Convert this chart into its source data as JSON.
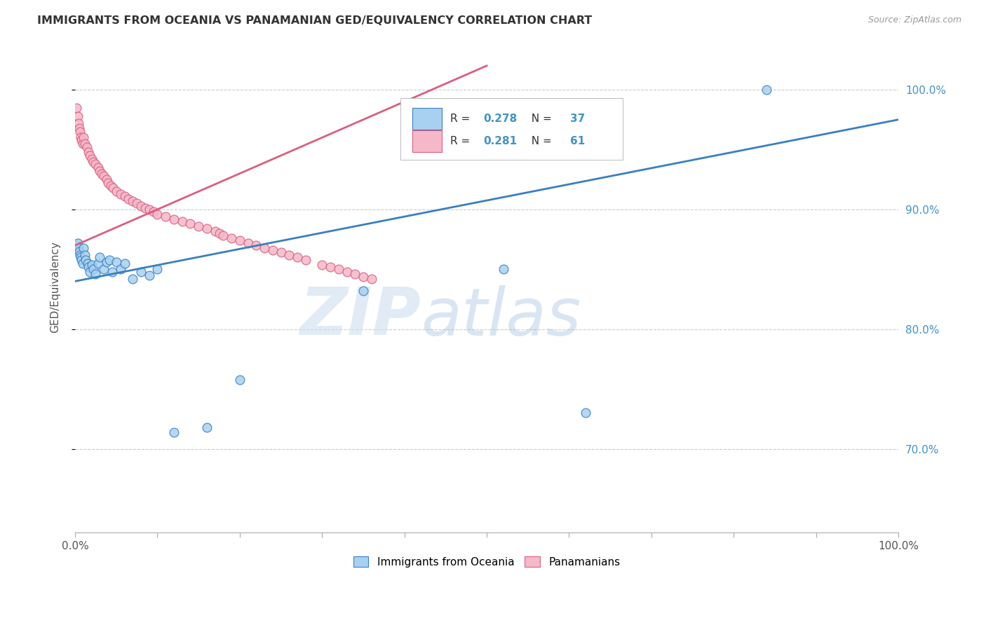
{
  "title": "IMMIGRANTS FROM OCEANIA VS PANAMANIAN GED/EQUIVALENCY CORRELATION CHART",
  "source": "Source: ZipAtlas.com",
  "ylabel": "GED/Equivalency",
  "legend_blue_label": "Immigrants from Oceania",
  "legend_pink_label": "Panamanians",
  "legend_blue_R": "0.278",
  "legend_blue_N": "37",
  "legend_pink_R": "0.281",
  "legend_pink_N": "61",
  "blue_color": "#a8d0f0",
  "pink_color": "#f5b8c8",
  "trend_blue_color": "#3a7fc1",
  "trend_pink_color": "#d95f7f",
  "yaxis_color": "#4393c3",
  "xlim": [
    0.0,
    1.0
  ],
  "ylim": [
    0.63,
    1.04
  ],
  "yticks": [
    0.7,
    0.8,
    0.9,
    1.0
  ],
  "ytick_labels": [
    "70.0%",
    "80.0%",
    "90.0%",
    "100.0%"
  ],
  "blue_points_x": [
    0.002,
    0.003,
    0.004,
    0.005,
    0.006,
    0.007,
    0.008,
    0.009,
    0.01,
    0.012,
    0.013,
    0.015,
    0.016,
    0.018,
    0.02,
    0.022,
    0.025,
    0.028,
    0.03,
    0.035,
    0.038,
    0.042,
    0.045,
    0.05,
    0.055,
    0.06,
    0.07,
    0.08,
    0.09,
    0.1,
    0.12,
    0.16,
    0.2,
    0.35,
    0.52,
    0.62,
    0.84
  ],
  "blue_points_y": [
    0.87,
    0.872,
    0.868,
    0.865,
    0.862,
    0.86,
    0.858,
    0.855,
    0.868,
    0.862,
    0.858,
    0.855,
    0.852,
    0.848,
    0.854,
    0.85,
    0.846,
    0.855,
    0.86,
    0.85,
    0.856,
    0.858,
    0.848,
    0.856,
    0.85,
    0.855,
    0.842,
    0.848,
    0.845,
    0.85,
    0.714,
    0.718,
    0.758,
    0.832,
    0.85,
    0.73,
    1.0
  ],
  "pink_points_x": [
    0.002,
    0.003,
    0.004,
    0.005,
    0.006,
    0.007,
    0.008,
    0.009,
    0.01,
    0.012,
    0.014,
    0.016,
    0.018,
    0.02,
    0.022,
    0.025,
    0.028,
    0.03,
    0.032,
    0.035,
    0.038,
    0.04,
    0.043,
    0.046,
    0.05,
    0.055,
    0.06,
    0.065,
    0.07,
    0.075,
    0.08,
    0.085,
    0.09,
    0.095,
    0.1,
    0.11,
    0.12,
    0.13,
    0.14,
    0.15,
    0.16,
    0.17,
    0.175,
    0.18,
    0.19,
    0.2,
    0.21,
    0.22,
    0.23,
    0.24,
    0.25,
    0.26,
    0.27,
    0.28,
    0.3,
    0.31,
    0.32,
    0.33,
    0.34,
    0.35,
    0.36
  ],
  "pink_points_y": [
    0.985,
    0.978,
    0.972,
    0.968,
    0.965,
    0.96,
    0.958,
    0.955,
    0.96,
    0.955,
    0.952,
    0.948,
    0.945,
    0.942,
    0.94,
    0.938,
    0.935,
    0.932,
    0.93,
    0.928,
    0.925,
    0.922,
    0.92,
    0.918,
    0.915,
    0.913,
    0.911,
    0.909,
    0.907,
    0.905,
    0.903,
    0.901,
    0.9,
    0.898,
    0.896,
    0.894,
    0.892,
    0.89,
    0.888,
    0.886,
    0.884,
    0.882,
    0.88,
    0.878,
    0.876,
    0.874,
    0.872,
    0.87,
    0.868,
    0.866,
    0.864,
    0.862,
    0.86,
    0.858,
    0.854,
    0.852,
    0.85,
    0.848,
    0.846,
    0.844,
    0.842
  ],
  "watermark_zip": "ZIP",
  "watermark_atlas": "atlas",
  "background_color": "#ffffff",
  "grid_color": "#cccccc"
}
